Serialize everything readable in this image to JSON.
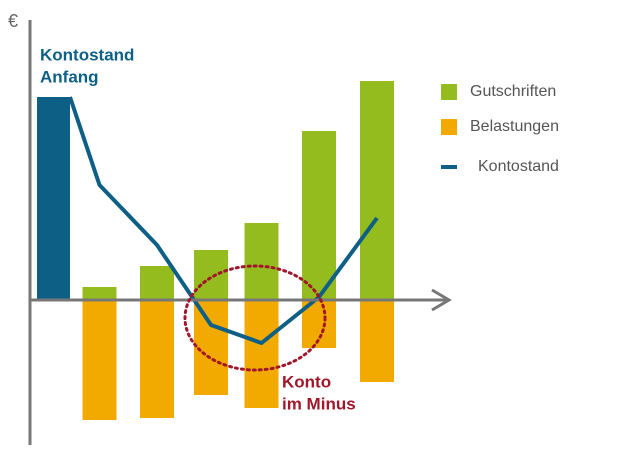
{
  "chart_data": {
    "type": "bar_line",
    "y_label": "€",
    "categories": [
      null,
      null,
      null,
      null,
      null,
      null,
      null
    ],
    "series": [
      {
        "name": "Gutschriften",
        "color": "#95bc1e",
        "kind": "bar",
        "values": [
          null,
          1.3,
          3.4,
          5,
          7.7,
          16.9,
          21.9
        ]
      },
      {
        "name": "Belastungen",
        "color": "#f2a900",
        "kind": "bar",
        "values": [
          null,
          -12,
          -11.8,
          -9.5,
          -10.8,
          -4.8,
          -8.2
        ]
      },
      {
        "name": "Kontostand",
        "color": "#0e5f86",
        "kind": "line",
        "values": [
          20.3,
          11.5,
          5.5,
          -2.5,
          -4.3,
          0.3,
          8.2
        ]
      }
    ],
    "ylim": [
      -14.5,
      28
    ],
    "annotations": [
      {
        "lines": [
          "Kontostand",
          "Anfang"
        ],
        "color": "#0e5f86"
      },
      {
        "lines": [
          "Konto",
          "im Minus"
        ],
        "color": "#a0172b"
      }
    ],
    "legend": "right"
  }
}
